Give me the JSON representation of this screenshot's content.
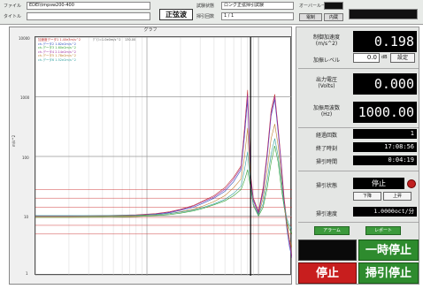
{
  "header": {
    "file_label": "ファイル",
    "file_value": "EDEI\\tmpsw200-400",
    "title_label": "タイトル",
    "title_value": "",
    "mode": "正弦波",
    "test_status_label": "試験状態",
    "test_status_value": "ロング正弦掃引試験",
    "sweep_count_label": "掃引回数",
    "sweep_count_value": "1  /  1",
    "over_loop_label": "オーバーループ",
    "over_loop_value": "",
    "btn_a": "電制",
    "btn_b": "内蔵"
  },
  "graph": {
    "title": "グラフ",
    "y_unit": "m/s^2",
    "legend": [
      {
        "text": "加速度データ1   1.40e3m/s^2",
        "color": "#c03030"
      },
      {
        "text": "ch-データ2  1.82e2m/s^2",
        "color": "#3050c0"
      },
      {
        "text": "ch-データ3  1.60e2m/s^2",
        "color": "#30a030"
      },
      {
        "text": "ch-データ4  2.14e2m/s^2",
        "color": "#a030a0"
      },
      {
        "text": "ch-データ5  1.78e2m/s^2",
        "color": "#c08030"
      },
      {
        "text": "ch-データ6  1.52e2m/s^2",
        "color": "#30a0a0"
      }
    ],
    "legend_ref": "ｸﾞﾗﾌ=1.0e0m/s^2",
    "legend_cursor": "130.00",
    "ylabels": [
      "10000",
      "1000",
      "100",
      "10",
      "1"
    ]
  },
  "chart_data": {
    "type": "line",
    "ylabel": "m/s^2",
    "xscale": "log",
    "yscale": "log",
    "xlim": [
      10,
      2000
    ],
    "ylim": [
      1,
      10000
    ],
    "x": [
      10,
      20,
      40,
      80,
      120,
      160,
      200,
      260,
      320,
      400,
      500,
      600,
      700,
      750,
      800,
      850,
      900,
      1000,
      1100,
      1200,
      1300,
      1400,
      1500,
      1600,
      1700,
      1800,
      1900,
      2000
    ],
    "series": [
      {
        "name": "加速度データ1",
        "color": "#c03030",
        "values": [
          10,
          10,
          10.2,
          10.5,
          11,
          11.8,
          13,
          15,
          18,
          22,
          30,
          45,
          70,
          300,
          1300,
          50,
          20,
          12,
          30,
          120,
          600,
          1100,
          300,
          80,
          20,
          8,
          4,
          2
        ]
      },
      {
        "name": "ch-データ2",
        "color": "#3050c0",
        "values": [
          10,
          10,
          10.1,
          10.3,
          10.8,
          11.4,
          12.5,
          14,
          16.5,
          20,
          26,
          38,
          60,
          220,
          900,
          40,
          18,
          11,
          25,
          100,
          480,
          900,
          250,
          70,
          16,
          6,
          3,
          2
        ]
      },
      {
        "name": "ch-データ3",
        "color": "#30a030",
        "values": [
          9.5,
          9.5,
          9.6,
          9.8,
          10.2,
          10.6,
          11.2,
          12.2,
          13.5,
          15.5,
          18,
          22,
          28,
          40,
          60,
          30,
          15,
          10,
          14,
          30,
          80,
          150,
          80,
          30,
          14,
          8,
          6,
          5
        ]
      },
      {
        "name": "ch-データ4",
        "color": "#a030a0",
        "values": [
          10,
          10,
          10.1,
          10.4,
          10.9,
          11.6,
          12.8,
          14.6,
          17.5,
          21,
          28,
          42,
          65,
          260,
          1100,
          45,
          19,
          11.5,
          27,
          110,
          520,
          1000,
          280,
          75,
          18,
          7,
          3.5,
          2
        ]
      },
      {
        "name": "ch-データ5",
        "color": "#c08030",
        "values": [
          9.8,
          9.8,
          9.9,
          10.1,
          10.5,
          11,
          11.8,
          13,
          14.8,
          17.5,
          22,
          30,
          42,
          100,
          300,
          35,
          16,
          10.5,
          20,
          60,
          200,
          350,
          150,
          50,
          15,
          7,
          4,
          3
        ]
      },
      {
        "name": "ch-データ6",
        "color": "#30a0a0",
        "values": [
          10.2,
          10.2,
          10.2,
          10.3,
          10.6,
          11,
          11.6,
          12.6,
          14,
          16,
          19,
          24,
          32,
          60,
          120,
          32,
          15,
          10.5,
          16,
          40,
          110,
          200,
          100,
          40,
          15,
          9,
          7,
          6
        ]
      }
    ],
    "cursor_x": 850,
    "limit_lines": [
      28,
      20,
      14,
      9.5,
      7,
      5
    ]
  },
  "right": {
    "ctrl_accel_label_1": "制御加速度",
    "ctrl_accel_label_2": "(m/s^2)",
    "ctrl_accel_value": "0.198",
    "accel_level_label": "加振レベル",
    "accel_level_value": "0.0",
    "accel_level_unit": "dB",
    "set_button": "設定",
    "out_volt_label_1": "出力電圧",
    "out_volt_label_2": "(Volts)",
    "out_volt_value": "0.000",
    "freq_label_1": "加振用波数",
    "freq_label_2": "(Hz)",
    "freq_value": "1000.00",
    "elapsed_count_label": "経過回数",
    "elapsed_count_value": "1",
    "end_time_label": "終了時刻",
    "end_time_value": "17:08:56",
    "sweep_time_label": "掃引時間",
    "sweep_time_value": "0:04:19",
    "sweep_state_label": "掃引状態",
    "sweep_state_value": "停止",
    "down_button": "下降",
    "up_button": "上昇",
    "sweep_rate_label": "掃引速度",
    "sweep_rate_value": "1.0000oct/分",
    "alarm_button": "アラーム",
    "report_button": "レポート",
    "pause_button": "一時停止",
    "stop_button": "停止",
    "sweep_stop_button": "掃引停止",
    "colors": {
      "stop_red": "#c81e1e",
      "green": "#2e8b2e",
      "black": "#000000"
    }
  }
}
